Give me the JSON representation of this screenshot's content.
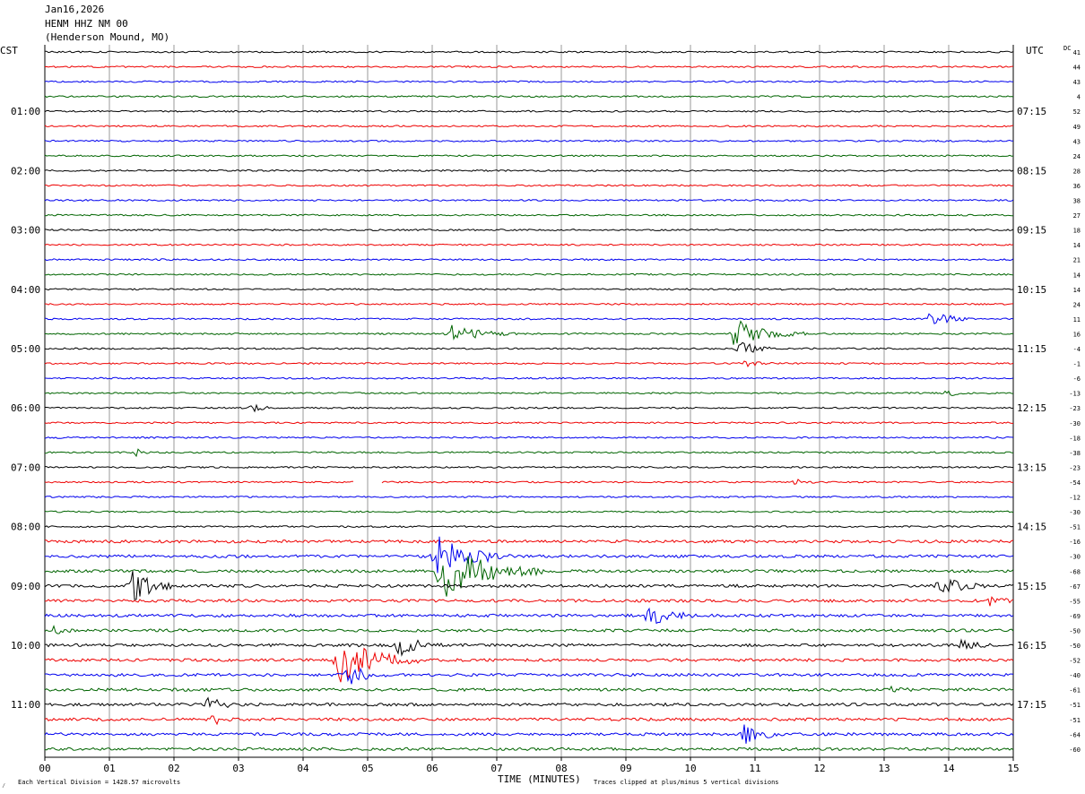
{
  "header": {
    "date": "Jan16,2026",
    "station": "HENM HHZ NM 00",
    "location": "(Henderson Mound, MO)"
  },
  "footer": {
    "scale_note": "Each Vertical Division = 1428.57 microvolts",
    "clip_note": "Traces clipped at plus/minus 5 vertical divisions",
    "corner_mark": "⁄"
  },
  "chart_data": {
    "type": "line",
    "title": "",
    "xlabel": "TIME (MINUTES)",
    "ylabel": "",
    "xlim": [
      0,
      15
    ],
    "x_ticks": [
      "00",
      "01",
      "02",
      "03",
      "04",
      "05",
      "06",
      "07",
      "08",
      "09",
      "10",
      "11",
      "12",
      "13",
      "14",
      "15"
    ],
    "left_axis_title": "CST",
    "right_axis_title": "UTC",
    "dc_column_title": "DC",
    "left_time_labels": [
      "01:00",
      "02:00",
      "03:00",
      "04:00",
      "05:00",
      "06:00",
      "07:00",
      "08:00",
      "09:00",
      "10:00",
      "11:00"
    ],
    "right_time_labels": [
      "07:15",
      "08:15",
      "09:15",
      "10:15",
      "11:15",
      "12:15",
      "13:15",
      "14:15",
      "15:15",
      "16:15",
      "17:15"
    ],
    "time_label_first_row": 4,
    "time_label_every_rows": 4,
    "trace_colors": [
      "#000000",
      "#ee0000",
      "#0000ee",
      "#006400"
    ],
    "row_count": 48,
    "dc_offsets": [
      41,
      44,
      43,
      4,
      52,
      49,
      43,
      24,
      28,
      36,
      38,
      27,
      18,
      14,
      21,
      14,
      14,
      24,
      11,
      16,
      -4,
      -1,
      -6,
      -13,
      -23,
      -30,
      -18,
      -38,
      -23,
      -54,
      -12,
      -30,
      -51,
      -16,
      -30,
      -68,
      -67,
      -55,
      -69,
      -50,
      -50,
      -52,
      -40,
      -61,
      -51,
      -51,
      -64,
      -60
    ],
    "events": [
      {
        "row": 18,
        "minute": 13.7,
        "amp": 11,
        "dur": 0.6
      },
      {
        "row": 19,
        "minute": 6.3,
        "amp": 9,
        "dur": 0.9
      },
      {
        "row": 19,
        "minute": 10.7,
        "amp": 16,
        "dur": 0.9
      },
      {
        "row": 20,
        "minute": 10.75,
        "amp": 14,
        "dur": 0.4
      },
      {
        "row": 21,
        "minute": 10.8,
        "amp": 5,
        "dur": 0.4
      },
      {
        "row": 23,
        "minute": 13.95,
        "amp": 5,
        "dur": 0.3
      },
      {
        "row": 24,
        "minute": 3.2,
        "amp": 5,
        "dur": 0.3
      },
      {
        "row": 27,
        "minute": 1.4,
        "amp": 5,
        "dur": 0.2
      },
      {
        "row": 29,
        "minute": 11.6,
        "amp": 4,
        "dur": 0.3
      },
      {
        "row": 34,
        "minute": 6.1,
        "amp": 22,
        "dur": 1.0
      },
      {
        "row": 35,
        "minute": 6.2,
        "amp": 30,
        "dur": 1.3
      },
      {
        "row": 36,
        "minute": 1.35,
        "amp": 20,
        "dur": 0.6
      },
      {
        "row": 36,
        "minute": 13.85,
        "amp": 12,
        "dur": 0.6
      },
      {
        "row": 37,
        "minute": 14.6,
        "amp": 6,
        "dur": 0.4
      },
      {
        "row": 38,
        "minute": 9.35,
        "amp": 14,
        "dur": 0.6
      },
      {
        "row": 39,
        "minute": 0.15,
        "amp": 6,
        "dur": 0.3
      },
      {
        "row": 40,
        "minute": 5.5,
        "amp": 11,
        "dur": 0.6
      },
      {
        "row": 40,
        "minute": 14.2,
        "amp": 6,
        "dur": 0.4
      },
      {
        "row": 41,
        "minute": 4.6,
        "amp": 26,
        "dur": 1.0
      },
      {
        "row": 42,
        "minute": 4.7,
        "amp": 12,
        "dur": 0.5
      },
      {
        "row": 43,
        "minute": 13.1,
        "amp": 6,
        "dur": 0.3
      },
      {
        "row": 44,
        "minute": 2.5,
        "amp": 8,
        "dur": 0.5
      },
      {
        "row": 45,
        "minute": 2.6,
        "amp": 6,
        "dur": 0.3
      },
      {
        "row": 46,
        "minute": 10.85,
        "amp": 12,
        "dur": 0.5
      }
    ],
    "gaps": [
      {
        "row": 29,
        "from_minute": 4.8,
        "to_minute": 5.2
      }
    ]
  }
}
